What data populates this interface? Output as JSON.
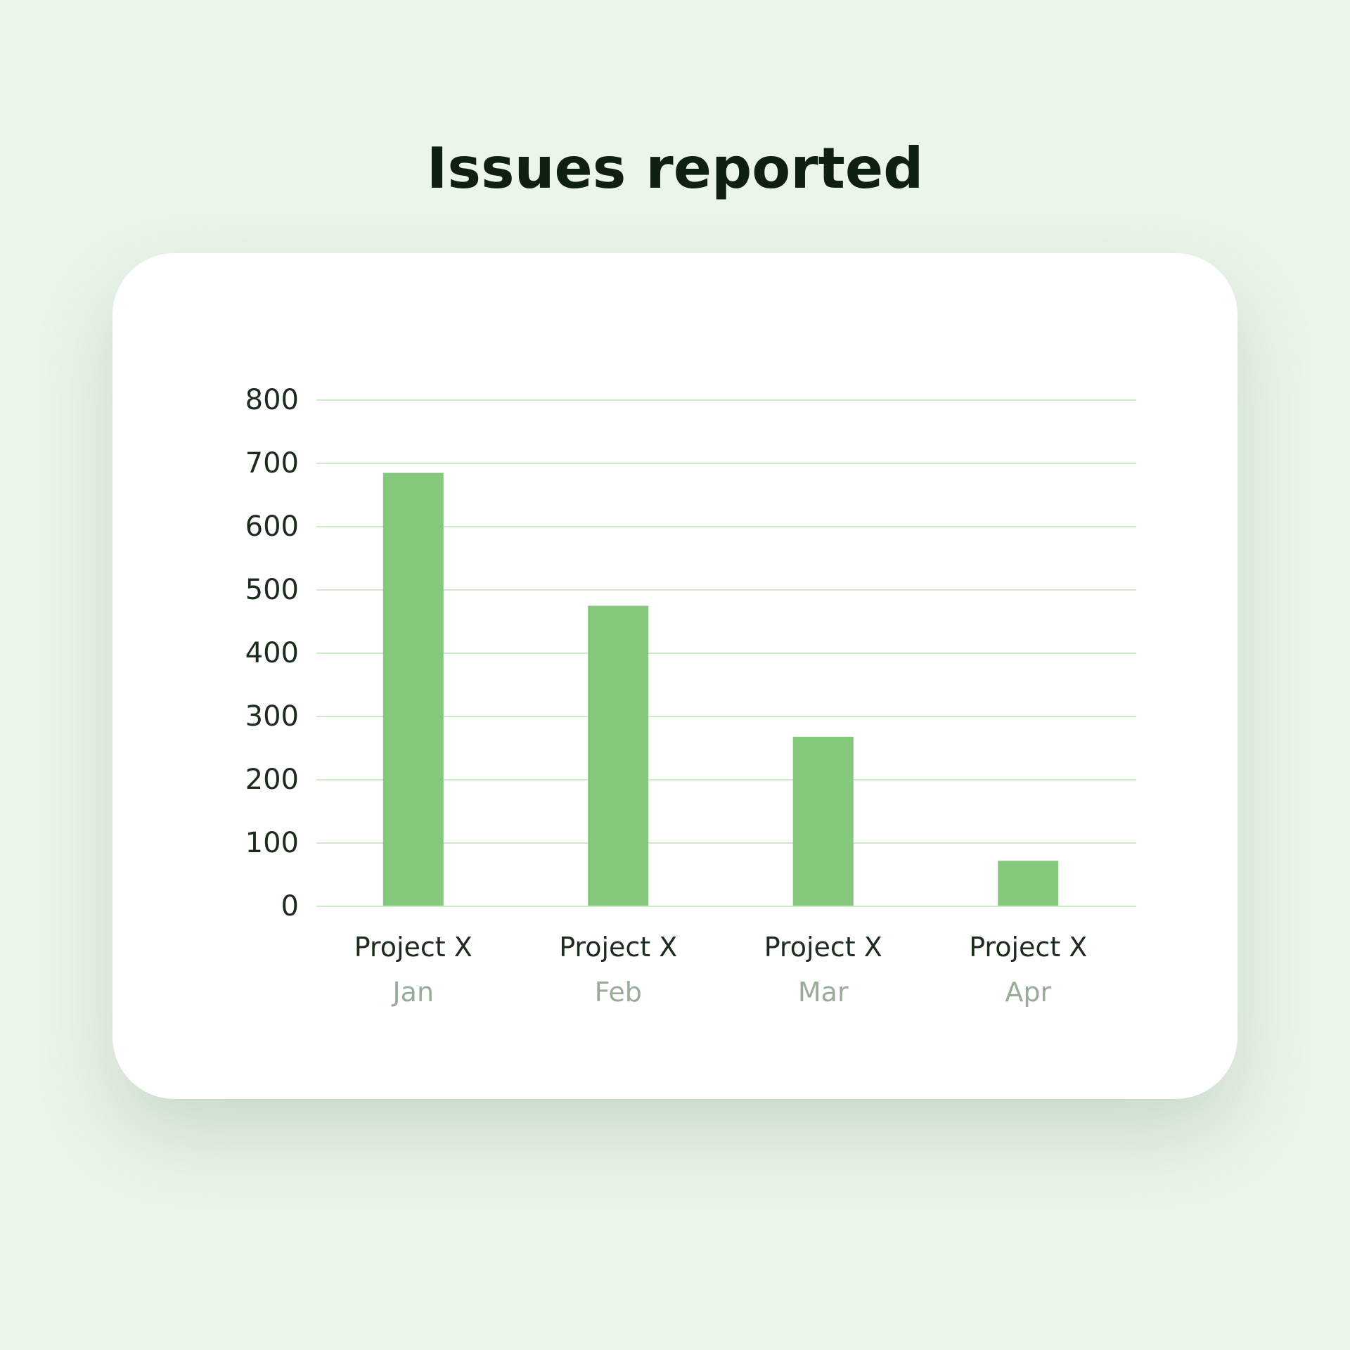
{
  "chart_data": {
    "type": "bar",
    "title": "Issues reported",
    "categories": [
      "Project X",
      "Project X",
      "Project X",
      "Project X"
    ],
    "subcategories": [
      "Jan",
      "Feb",
      "Mar",
      "Apr"
    ],
    "values": [
      685,
      475,
      268,
      72
    ],
    "ylim": [
      0,
      800
    ],
    "yticks": [
      0,
      100,
      200,
      300,
      400,
      500,
      600,
      700,
      800
    ],
    "grid": true,
    "xlabel": "",
    "ylabel": "",
    "colors": {
      "bar": "#84c87c",
      "grid": "#cfe8cc",
      "background": "#ebf5ea",
      "card": "#ffffff"
    }
  }
}
